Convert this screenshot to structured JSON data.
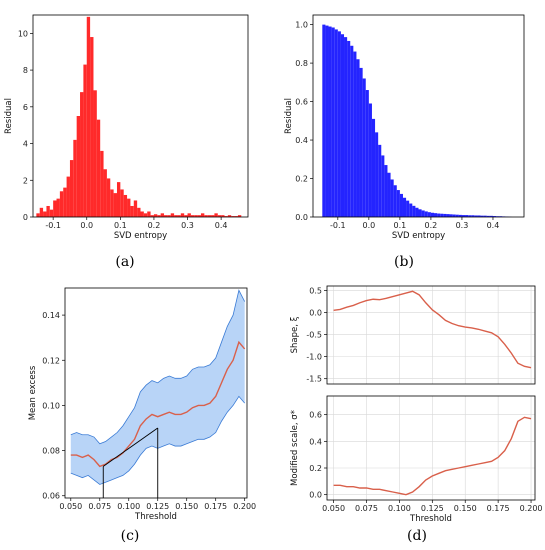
{
  "figure": {
    "panel_labels": [
      "(a)",
      "(b)",
      "(c)",
      "(d)"
    ]
  },
  "chart_data": [
    {
      "id": "a",
      "type": "bar",
      "title": "",
      "xlabel": "SVD entropy",
      "ylabel": "Residual",
      "xlim": [
        -0.16,
        0.48
      ],
      "ylim": [
        0,
        11
      ],
      "xticks": [
        "-0.1",
        "0.0",
        "0.1",
        "0.2",
        "0.3",
        "0.4"
      ],
      "yticks": [
        "0",
        "2",
        "4",
        "6",
        "8",
        "10"
      ],
      "color": "#ff2a2a",
      "bin_width": 0.01,
      "x": [
        -0.15,
        -0.14,
        -0.13,
        -0.12,
        -0.11,
        -0.1,
        -0.09,
        -0.08,
        -0.07,
        -0.06,
        -0.05,
        -0.04,
        -0.03,
        -0.02,
        -0.01,
        0.0,
        0.01,
        0.02,
        0.03,
        0.04,
        0.05,
        0.06,
        0.07,
        0.08,
        0.09,
        0.1,
        0.11,
        0.12,
        0.13,
        0.14,
        0.15,
        0.16,
        0.17,
        0.18,
        0.19,
        0.2,
        0.21,
        0.22,
        0.23,
        0.24,
        0.25,
        0.26,
        0.27,
        0.28,
        0.29,
        0.3,
        0.31,
        0.32,
        0.33,
        0.34,
        0.35,
        0.36,
        0.37,
        0.38,
        0.39,
        0.4,
        0.41,
        0.42,
        0.43,
        0.44,
        0.45
      ],
      "values": [
        0.2,
        0.5,
        0.3,
        0.6,
        0.4,
        0.9,
        1.0,
        1.4,
        1.6,
        2.2,
        3.1,
        4.2,
        5.5,
        6.8,
        8.3,
        10.9,
        9.8,
        6.9,
        5.3,
        3.6,
        2.6,
        2.1,
        1.5,
        1.3,
        1.9,
        1.5,
        1.2,
        1.0,
        0.6,
        0.9,
        0.5,
        0.3,
        0.2,
        0.3,
        0.1,
        0.15,
        0.1,
        0.2,
        0.1,
        0.1,
        0.2,
        0.1,
        0.1,
        0.2,
        0.1,
        0.2,
        0.1,
        0.1,
        0.1,
        0.2,
        0.1,
        0.1,
        0.1,
        0.2,
        0.1,
        0.1,
        0.05,
        0.1,
        0.05,
        0.05,
        0.1
      ]
    },
    {
      "id": "b",
      "type": "bar",
      "title": "",
      "xlabel": "SVD entropy",
      "ylabel": "Residual",
      "xlim": [
        -0.18,
        0.5
      ],
      "ylim": [
        0,
        1.05
      ],
      "xticks": [
        "-0.1",
        "0.0",
        "0.1",
        "0.2",
        "0.3",
        "0.4"
      ],
      "yticks": [
        "0.0",
        "0.2",
        "0.4",
        "0.6",
        "0.8",
        "1.0"
      ],
      "color": "#2424ff",
      "bin_width": 0.01,
      "x": [
        -0.15,
        -0.14,
        -0.13,
        -0.12,
        -0.11,
        -0.1,
        -0.09,
        -0.08,
        -0.07,
        -0.06,
        -0.05,
        -0.04,
        -0.03,
        -0.02,
        -0.01,
        0.0,
        0.01,
        0.02,
        0.03,
        0.04,
        0.05,
        0.06,
        0.07,
        0.08,
        0.09,
        0.1,
        0.11,
        0.12,
        0.13,
        0.14,
        0.15,
        0.16,
        0.17,
        0.18,
        0.19,
        0.2,
        0.21,
        0.22,
        0.23,
        0.24,
        0.25,
        0.26,
        0.27,
        0.28,
        0.29,
        0.3,
        0.31,
        0.32,
        0.33,
        0.34,
        0.35,
        0.36,
        0.37,
        0.38,
        0.39,
        0.4,
        0.41,
        0.42,
        0.43,
        0.44,
        0.45
      ],
      "values": [
        1.0,
        0.995,
        0.99,
        0.985,
        0.975,
        0.965,
        0.95,
        0.935,
        0.915,
        0.89,
        0.86,
        0.82,
        0.775,
        0.72,
        0.66,
        0.59,
        0.51,
        0.44,
        0.375,
        0.32,
        0.27,
        0.23,
        0.195,
        0.165,
        0.14,
        0.12,
        0.1,
        0.085,
        0.07,
        0.058,
        0.048,
        0.04,
        0.034,
        0.029,
        0.025,
        0.022,
        0.02,
        0.018,
        0.017,
        0.016,
        0.015,
        0.014,
        0.013,
        0.012,
        0.011,
        0.01,
        0.01,
        0.009,
        0.009,
        0.008,
        0.008,
        0.007,
        0.007,
        0.006,
        0.006,
        0.005,
        0.004,
        0.004,
        0.003,
        0.002,
        0.001
      ]
    },
    {
      "id": "c",
      "type": "line",
      "title": "",
      "xlabel": "Threshold",
      "ylabel": "Mean excess",
      "xlim": [
        0.045,
        0.202
      ],
      "ylim": [
        0.059,
        0.152
      ],
      "xticks": [
        "0.050",
        "0.075",
        "0.100",
        "0.125",
        "0.150",
        "0.175",
        "0.200"
      ],
      "yticks": [
        "0.06",
        "0.08",
        "0.10",
        "0.12",
        "0.14"
      ],
      "line_color": "#d9604b",
      "band_color": "#b8d4f7",
      "band_edge_color": "#3a7bd5",
      "x": [
        0.05,
        0.055,
        0.06,
        0.065,
        0.07,
        0.075,
        0.08,
        0.085,
        0.09,
        0.095,
        0.1,
        0.105,
        0.11,
        0.115,
        0.12,
        0.125,
        0.13,
        0.135,
        0.14,
        0.145,
        0.15,
        0.155,
        0.16,
        0.165,
        0.17,
        0.175,
        0.18,
        0.185,
        0.19,
        0.195,
        0.2
      ],
      "series": [
        {
          "values": [
            0.078,
            0.078,
            0.077,
            0.078,
            0.076,
            0.073,
            0.074,
            0.076,
            0.077,
            0.079,
            0.082,
            0.085,
            0.091,
            0.094,
            0.096,
            0.095,
            0.096,
            0.097,
            0.096,
            0.096,
            0.097,
            0.099,
            0.1,
            0.1,
            0.101,
            0.104,
            0.11,
            0.116,
            0.12,
            0.128,
            0.125
          ]
        },
        {
          "values": [
            0.07,
            0.069,
            0.068,
            0.069,
            0.067,
            0.065,
            0.066,
            0.067,
            0.068,
            0.069,
            0.071,
            0.074,
            0.078,
            0.081,
            0.082,
            0.081,
            0.082,
            0.083,
            0.082,
            0.082,
            0.083,
            0.084,
            0.085,
            0.085,
            0.086,
            0.088,
            0.093,
            0.097,
            0.1,
            0.104,
            0.101
          ]
        },
        {
          "values": [
            0.087,
            0.088,
            0.087,
            0.087,
            0.086,
            0.083,
            0.084,
            0.086,
            0.088,
            0.091,
            0.095,
            0.099,
            0.106,
            0.109,
            0.111,
            0.11,
            0.112,
            0.113,
            0.112,
            0.112,
            0.113,
            0.116,
            0.117,
            0.117,
            0.118,
            0.121,
            0.128,
            0.135,
            0.14,
            0.151,
            0.146
          ]
        }
      ],
      "annotation": {
        "x": [
          0.078,
          0.125
        ],
        "y": [
          0.073,
          0.09
        ]
      }
    },
    {
      "id": "d_top",
      "type": "line",
      "title": "",
      "xlabel": "",
      "ylabel": "Shape, ξ",
      "xlim": [
        0.045,
        0.203
      ],
      "ylim": [
        -1.62,
        0.6
      ],
      "xticks": [],
      "yticks": [
        "0.5",
        "0.0",
        "-0.5",
        "-1.0",
        "-1.5"
      ],
      "line_color": "#d9604b",
      "grid": true,
      "x": [
        0.05,
        0.055,
        0.06,
        0.065,
        0.07,
        0.075,
        0.08,
        0.085,
        0.09,
        0.095,
        0.1,
        0.105,
        0.11,
        0.115,
        0.12,
        0.125,
        0.13,
        0.135,
        0.14,
        0.145,
        0.15,
        0.155,
        0.16,
        0.165,
        0.17,
        0.175,
        0.18,
        0.185,
        0.19,
        0.195,
        0.2
      ],
      "series": [
        {
          "values": [
            0.05,
            0.07,
            0.12,
            0.16,
            0.22,
            0.27,
            0.3,
            0.29,
            0.32,
            0.36,
            0.4,
            0.44,
            0.48,
            0.4,
            0.22,
            0.06,
            -0.05,
            -0.18,
            -0.25,
            -0.3,
            -0.33,
            -0.35,
            -0.38,
            -0.42,
            -0.46,
            -0.55,
            -0.72,
            -0.92,
            -1.15,
            -1.22,
            -1.25
          ]
        }
      ]
    },
    {
      "id": "d_bottom",
      "type": "line",
      "title": "",
      "xlabel": "Threshold",
      "ylabel": "Modified scale, σ*",
      "xlim": [
        0.045,
        0.203
      ],
      "ylim": [
        -0.04,
        0.74
      ],
      "xticks": [
        "0.050",
        "0.075",
        "0.100",
        "0.125",
        "0.150",
        "0.175",
        "0.200"
      ],
      "yticks": [
        "0.0",
        "0.2",
        "0.4",
        "0.6"
      ],
      "line_color": "#d9604b",
      "grid": true,
      "x": [
        0.05,
        0.055,
        0.06,
        0.065,
        0.07,
        0.075,
        0.08,
        0.085,
        0.09,
        0.095,
        0.1,
        0.105,
        0.11,
        0.115,
        0.12,
        0.125,
        0.13,
        0.135,
        0.14,
        0.145,
        0.15,
        0.155,
        0.16,
        0.165,
        0.17,
        0.175,
        0.18,
        0.185,
        0.19,
        0.195,
        0.2
      ],
      "series": [
        {
          "values": [
            0.07,
            0.07,
            0.06,
            0.06,
            0.05,
            0.05,
            0.04,
            0.04,
            0.03,
            0.02,
            0.01,
            0.0,
            0.02,
            0.06,
            0.11,
            0.14,
            0.16,
            0.18,
            0.19,
            0.2,
            0.21,
            0.22,
            0.23,
            0.24,
            0.25,
            0.28,
            0.33,
            0.42,
            0.55,
            0.58,
            0.57
          ]
        }
      ]
    }
  ]
}
